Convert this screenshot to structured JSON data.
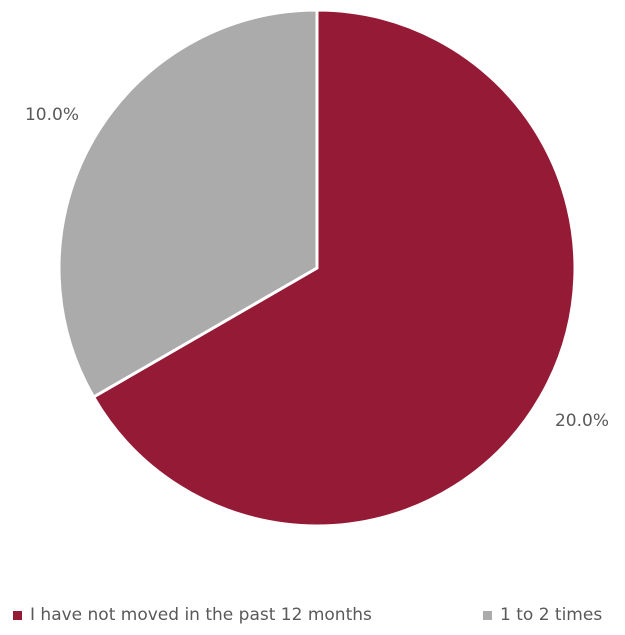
{
  "chart_data": {
    "type": "pie",
    "categories": [
      "I have not moved in the past 12 months",
      "1 to 2 times"
    ],
    "values": [
      20.0,
      10.0
    ],
    "data_labels": [
      "20.0%",
      "10.0%"
    ],
    "colors": [
      "#951A35",
      "#ABABAB"
    ],
    "legend": {
      "position": "bottom",
      "entries": [
        "I have not moved in the past 12 months",
        "1 to 2 times"
      ]
    },
    "start_angle": "12 o'clock",
    "direction": "clockwise"
  }
}
